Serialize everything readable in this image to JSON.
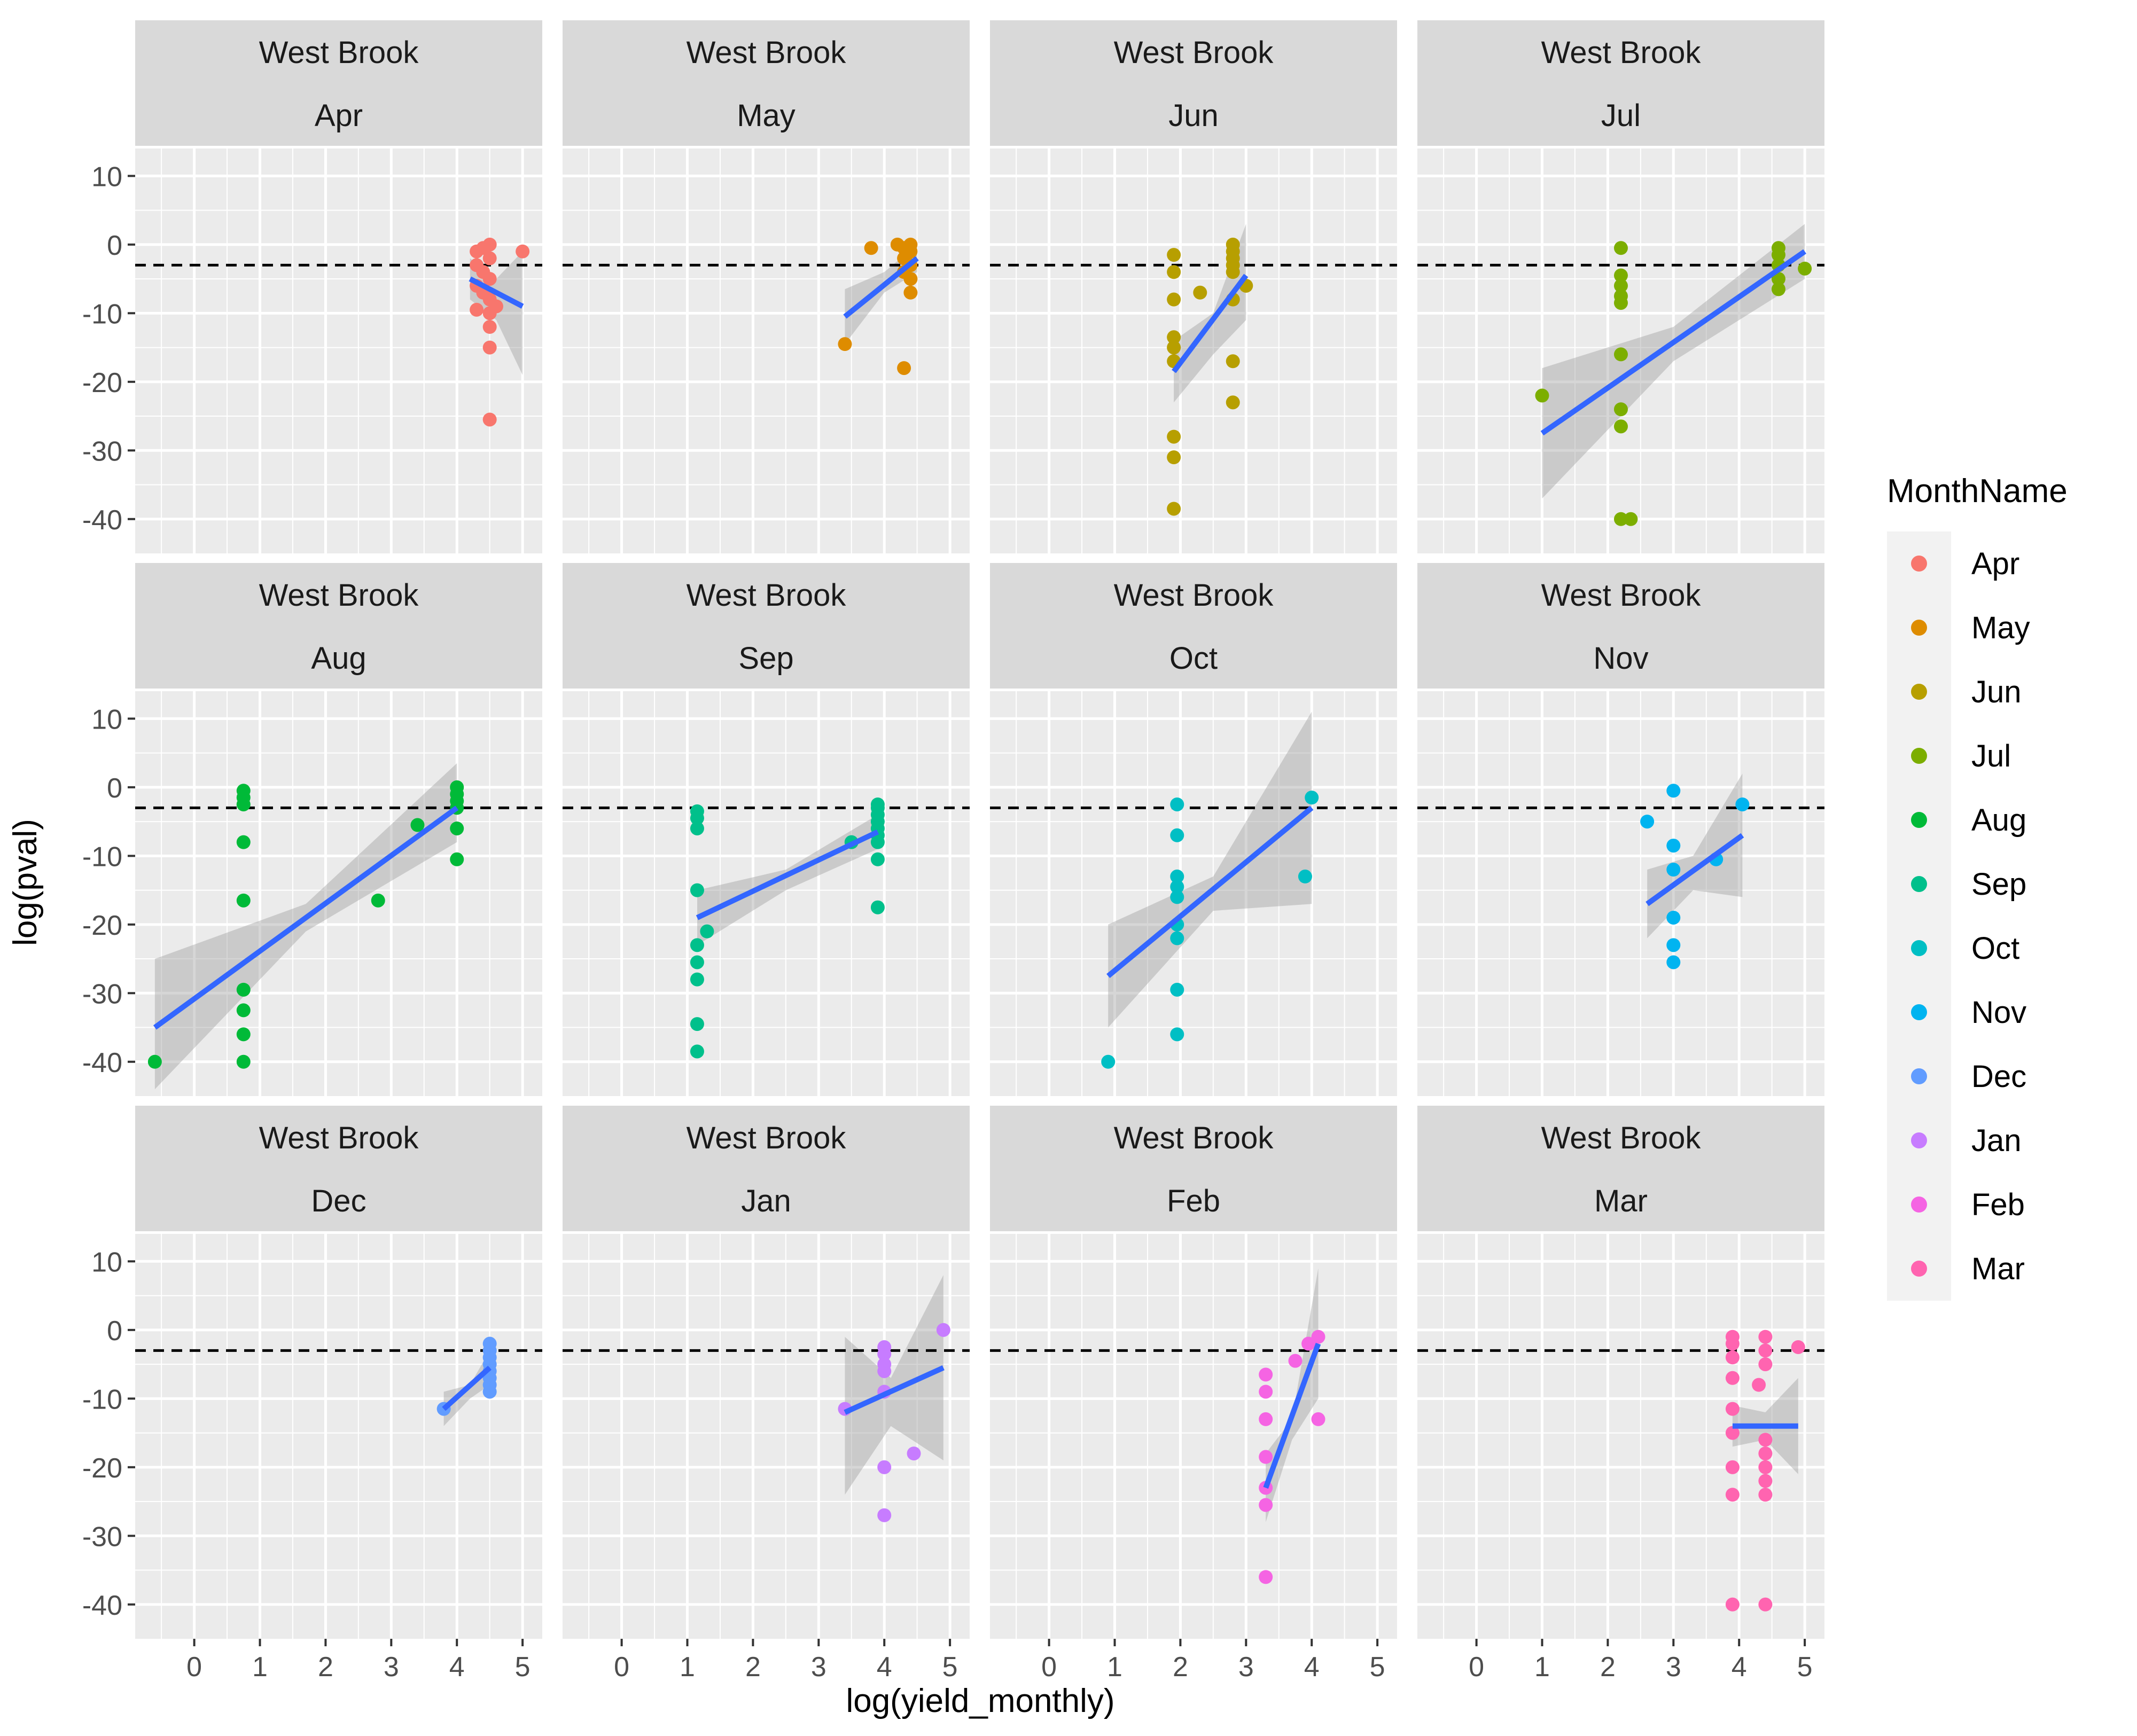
{
  "chart_data": {
    "type": "scatter",
    "facet_row_label": "West Brook",
    "xlabel": "log(yield_monthly)",
    "ylabel": "log(pval)",
    "xlim": [
      -0.9,
      5.3
    ],
    "ylim": [
      -45,
      14
    ],
    "x_ticks": [
      0,
      1,
      2,
      3,
      4,
      5
    ],
    "y_ticks": [
      10,
      0,
      -10,
      -20,
      -30,
      -40
    ],
    "hline": -3,
    "legend": {
      "title": "MonthName",
      "position": "right",
      "entries": [
        "Apr",
        "May",
        "Jun",
        "Jul",
        "Aug",
        "Sep",
        "Oct",
        "Nov",
        "Dec",
        "Jan",
        "Feb",
        "Mar"
      ]
    },
    "colors": {
      "Apr": "#F8766D",
      "May": "#DE8C00",
      "Jun": "#B79F00",
      "Jul": "#7CAE00",
      "Aug": "#00BA38",
      "Sep": "#00C08B",
      "Oct": "#00BFC4",
      "Nov": "#00B4F0",
      "Dec": "#619CFF",
      "Jan": "#C77CFF",
      "Feb": "#F564E3",
      "Mar": "#FF64B0",
      "fit": "#3366FF",
      "band": "#999999",
      "panel_bg": "#EBEBEB",
      "strip_bg": "#D9D9D9"
    },
    "panels": [
      {
        "month": "Apr",
        "points": [
          [
            4.3,
            -1
          ],
          [
            4.4,
            -0.5
          ],
          [
            4.5,
            0
          ],
          [
            4.5,
            -2
          ],
          [
            4.3,
            -3
          ],
          [
            4.4,
            -4
          ],
          [
            4.5,
            -5
          ],
          [
            4.3,
            -6
          ],
          [
            4.4,
            -7
          ],
          [
            4.5,
            -8
          ],
          [
            4.6,
            -9
          ],
          [
            4.3,
            -9.5
          ],
          [
            4.5,
            -10
          ],
          [
            4.5,
            -12
          ],
          [
            4.5,
            -15
          ],
          [
            4.5,
            -25.5
          ],
          [
            5.0,
            -1
          ]
        ],
        "fit": [
          [
            4.2,
            -5
          ],
          [
            5.0,
            -9
          ]
        ],
        "band": {
          "upper": [
            [
              4.2,
              -2
            ],
            [
              4.6,
              -5
            ],
            [
              5.0,
              -1
            ]
          ],
          "lower": [
            [
              4.2,
              -8
            ],
            [
              4.6,
              -11
            ],
            [
              5.0,
              -19
            ]
          ]
        }
      },
      {
        "month": "May",
        "points": [
          [
            3.8,
            -0.5
          ],
          [
            4.2,
            0
          ],
          [
            4.3,
            -0.5
          ],
          [
            4.4,
            0
          ],
          [
            4.4,
            -1
          ],
          [
            4.3,
            -2
          ],
          [
            4.4,
            -3
          ],
          [
            4.3,
            -4
          ],
          [
            4.4,
            -5
          ],
          [
            4.4,
            -7
          ],
          [
            3.4,
            -14.5
          ],
          [
            4.3,
            -18
          ]
        ],
        "fit": [
          [
            3.4,
            -10.5
          ],
          [
            4.5,
            -2
          ]
        ],
        "band": {
          "upper": [
            [
              3.4,
              -6.5
            ],
            [
              4.0,
              -4
            ],
            [
              4.5,
              0
            ]
          ],
          "lower": [
            [
              3.4,
              -14.5
            ],
            [
              4.0,
              -7
            ],
            [
              4.5,
              -4
            ]
          ]
        }
      },
      {
        "month": "Jun",
        "points": [
          [
            1.9,
            -1.5
          ],
          [
            1.9,
            -4
          ],
          [
            1.9,
            -8
          ],
          [
            1.9,
            -13.5
          ],
          [
            1.9,
            -15
          ],
          [
            1.9,
            -17
          ],
          [
            1.9,
            -28
          ],
          [
            1.9,
            -31
          ],
          [
            1.9,
            -38.5
          ],
          [
            2.3,
            -7
          ],
          [
            2.8,
            0
          ],
          [
            2.8,
            -1
          ],
          [
            2.8,
            -2
          ],
          [
            2.8,
            -3
          ],
          [
            2.8,
            -4
          ],
          [
            2.8,
            -8
          ],
          [
            2.8,
            -17
          ],
          [
            2.8,
            -23
          ],
          [
            3.0,
            -6
          ]
        ],
        "fit": [
          [
            1.9,
            -18.5
          ],
          [
            3.0,
            -4.5
          ]
        ],
        "band": {
          "upper": [
            [
              1.9,
              -14
            ],
            [
              2.5,
              -10
            ],
            [
              3.0,
              3
            ]
          ],
          "lower": [
            [
              1.9,
              -23
            ],
            [
              2.5,
              -16
            ],
            [
              3.0,
              -11
            ]
          ]
        }
      },
      {
        "month": "Jul",
        "points": [
          [
            1.0,
            -22
          ],
          [
            2.2,
            -0.5
          ],
          [
            2.2,
            -4.5
          ],
          [
            2.2,
            -6
          ],
          [
            2.2,
            -7.5
          ],
          [
            2.2,
            -8.5
          ],
          [
            2.2,
            -16
          ],
          [
            2.2,
            -24
          ],
          [
            2.2,
            -26.5
          ],
          [
            2.2,
            -40
          ],
          [
            2.35,
            -40
          ],
          [
            4.6,
            -0.5
          ],
          [
            4.6,
            -1.5
          ],
          [
            4.6,
            -3
          ],
          [
            4.6,
            -5
          ],
          [
            4.6,
            -6.5
          ],
          [
            5.0,
            -3.5
          ]
        ],
        "fit": [
          [
            1.0,
            -27.5
          ],
          [
            5.0,
            -1
          ]
        ],
        "band": {
          "upper": [
            [
              1.0,
              -18
            ],
            [
              3.0,
              -12
            ],
            [
              5.0,
              3
            ]
          ],
          "lower": [
            [
              1.0,
              -37
            ],
            [
              3.0,
              -17
            ],
            [
              5.0,
              -5
            ]
          ]
        }
      },
      {
        "month": "Aug",
        "points": [
          [
            -0.6,
            -40
          ],
          [
            0.75,
            -0.5
          ],
          [
            0.75,
            -1.5
          ],
          [
            0.75,
            -2.5
          ],
          [
            0.75,
            -8
          ],
          [
            0.75,
            -16.5
          ],
          [
            0.75,
            -29.5
          ],
          [
            0.75,
            -32.5
          ],
          [
            0.75,
            -36
          ],
          [
            0.75,
            -40
          ],
          [
            2.8,
            -16.5
          ],
          [
            3.4,
            -5.5
          ],
          [
            4.0,
            0
          ],
          [
            4.0,
            -1
          ],
          [
            4.0,
            -2
          ],
          [
            4.0,
            -3
          ],
          [
            4.0,
            -6
          ],
          [
            4.0,
            -10.5
          ]
        ],
        "fit": [
          [
            -0.6,
            -35
          ],
          [
            4.0,
            -3
          ]
        ],
        "band": {
          "upper": [
            [
              -0.6,
              -25
            ],
            [
              1.7,
              -17
            ],
            [
              4.0,
              3.5
            ]
          ],
          "lower": [
            [
              -0.6,
              -44
            ],
            [
              1.7,
              -21
            ],
            [
              4.0,
              -8
            ]
          ]
        }
      },
      {
        "month": "Sep",
        "points": [
          [
            1.15,
            -3.5
          ],
          [
            1.15,
            -4.5
          ],
          [
            1.15,
            -6
          ],
          [
            1.15,
            -15
          ],
          [
            1.15,
            -23
          ],
          [
            1.15,
            -25.5
          ],
          [
            1.15,
            -28
          ],
          [
            1.15,
            -34.5
          ],
          [
            1.15,
            -38.5
          ],
          [
            1.3,
            -21
          ],
          [
            3.5,
            -8
          ],
          [
            3.9,
            -2.5
          ],
          [
            3.9,
            -3
          ],
          [
            3.9,
            -4
          ],
          [
            3.9,
            -5
          ],
          [
            3.9,
            -6
          ],
          [
            3.9,
            -7
          ],
          [
            3.9,
            -8
          ],
          [
            3.9,
            -10.5
          ],
          [
            3.9,
            -17.5
          ]
        ],
        "fit": [
          [
            1.15,
            -19
          ],
          [
            3.9,
            -6.5
          ]
        ],
        "band": {
          "upper": [
            [
              1.15,
              -15
            ],
            [
              2.5,
              -12
            ],
            [
              3.9,
              -4
            ]
          ],
          "lower": [
            [
              1.15,
              -23
            ],
            [
              2.5,
              -15
            ],
            [
              3.9,
              -9
            ]
          ]
        }
      },
      {
        "month": "Oct",
        "points": [
          [
            0.9,
            -40
          ],
          [
            1.95,
            -2.5
          ],
          [
            1.95,
            -7
          ],
          [
            1.95,
            -13
          ],
          [
            1.95,
            -14.5
          ],
          [
            1.95,
            -16
          ],
          [
            1.95,
            -20
          ],
          [
            1.95,
            -22
          ],
          [
            1.95,
            -29.5
          ],
          [
            1.95,
            -36
          ],
          [
            3.9,
            -13
          ],
          [
            4.0,
            -1.5
          ]
        ],
        "fit": [
          [
            0.9,
            -27.5
          ],
          [
            4.0,
            -3
          ]
        ],
        "band": {
          "upper": [
            [
              0.9,
              -20
            ],
            [
              2.5,
              -13
            ],
            [
              4.0,
              11
            ]
          ],
          "lower": [
            [
              0.9,
              -35
            ],
            [
              2.5,
              -18
            ],
            [
              4.0,
              -17
            ]
          ]
        }
      },
      {
        "month": "Nov",
        "points": [
          [
            2.6,
            -5
          ],
          [
            3.0,
            -0.5
          ],
          [
            3.0,
            -8.5
          ],
          [
            3.0,
            -12
          ],
          [
            3.0,
            -19
          ],
          [
            3.0,
            -23
          ],
          [
            3.0,
            -25.5
          ],
          [
            3.65,
            -10.5
          ],
          [
            4.05,
            -2.5
          ]
        ],
        "fit": [
          [
            2.6,
            -17
          ],
          [
            4.05,
            -7
          ]
        ],
        "band": {
          "upper": [
            [
              2.6,
              -12
            ],
            [
              3.3,
              -10
            ],
            [
              4.05,
              2
            ]
          ],
          "lower": [
            [
              2.6,
              -22
            ],
            [
              3.3,
              -15
            ],
            [
              4.05,
              -16
            ]
          ]
        }
      },
      {
        "month": "Dec",
        "points": [
          [
            3.8,
            -11.5
          ],
          [
            4.5,
            -2
          ],
          [
            4.5,
            -3
          ],
          [
            4.5,
            -4
          ],
          [
            4.5,
            -5
          ],
          [
            4.5,
            -6
          ],
          [
            4.5,
            -7
          ],
          [
            4.5,
            -8
          ],
          [
            4.5,
            -9
          ]
        ],
        "fit": [
          [
            3.8,
            -11.5
          ],
          [
            4.5,
            -5.5
          ]
        ],
        "band": {
          "upper": [
            [
              3.8,
              -9
            ],
            [
              4.2,
              -8
            ],
            [
              4.5,
              -3
            ]
          ],
          "lower": [
            [
              3.8,
              -14
            ],
            [
              4.2,
              -10
            ],
            [
              4.5,
              -8
            ]
          ]
        }
      },
      {
        "month": "Jan",
        "points": [
          [
            3.4,
            -11.5
          ],
          [
            4.0,
            -2.5
          ],
          [
            4.0,
            -3.5
          ],
          [
            4.0,
            -5
          ],
          [
            4.0,
            -6
          ],
          [
            4.0,
            -9
          ],
          [
            4.0,
            -20
          ],
          [
            4.0,
            -27
          ],
          [
            4.45,
            -18
          ],
          [
            4.9,
            0
          ]
        ],
        "fit": [
          [
            3.4,
            -12
          ],
          [
            4.9,
            -5.5
          ]
        ],
        "band": {
          "upper": [
            [
              3.4,
              -1
            ],
            [
              4.1,
              -7
            ],
            [
              4.9,
              8
            ]
          ],
          "lower": [
            [
              3.4,
              -24
            ],
            [
              4.1,
              -14
            ],
            [
              4.9,
              -19
            ]
          ]
        }
      },
      {
        "month": "Feb",
        "points": [
          [
            3.3,
            -6.5
          ],
          [
            3.3,
            -9
          ],
          [
            3.3,
            -13
          ],
          [
            3.3,
            -18.5
          ],
          [
            3.3,
            -23
          ],
          [
            3.3,
            -25.5
          ],
          [
            3.3,
            -36
          ],
          [
            3.75,
            -4.5
          ],
          [
            3.95,
            -2
          ],
          [
            4.1,
            -1
          ],
          [
            4.1,
            -13
          ]
        ],
        "fit": [
          [
            3.3,
            -23
          ],
          [
            4.1,
            -2
          ]
        ],
        "band": {
          "upper": [
            [
              3.3,
              -18
            ],
            [
              3.7,
              -13
            ],
            [
              4.1,
              9
            ]
          ],
          "lower": [
            [
              3.3,
              -28
            ],
            [
              3.7,
              -16
            ],
            [
              4.1,
              -10
            ]
          ]
        }
      },
      {
        "month": "Mar",
        "points": [
          [
            3.9,
            -1
          ],
          [
            3.9,
            -2
          ],
          [
            3.9,
            -4
          ],
          [
            3.9,
            -7
          ],
          [
            3.9,
            -11.5
          ],
          [
            3.9,
            -15
          ],
          [
            3.9,
            -20
          ],
          [
            3.9,
            -24
          ],
          [
            3.9,
            -40
          ],
          [
            4.3,
            -8
          ],
          [
            4.4,
            -1
          ],
          [
            4.4,
            -3
          ],
          [
            4.4,
            -5
          ],
          [
            4.4,
            -16
          ],
          [
            4.4,
            -18
          ],
          [
            4.4,
            -20
          ],
          [
            4.4,
            -22
          ],
          [
            4.4,
            -24
          ],
          [
            4.4,
            -40
          ],
          [
            4.9,
            -2.5
          ]
        ],
        "fit": [
          [
            3.9,
            -14
          ],
          [
            4.9,
            -14
          ]
        ],
        "band": {
          "upper": [
            [
              3.9,
              -11
            ],
            [
              4.4,
              -12
            ],
            [
              4.9,
              -7
            ]
          ],
          "lower": [
            [
              3.9,
              -17
            ],
            [
              4.4,
              -16
            ],
            [
              4.9,
              -21
            ]
          ]
        }
      }
    ]
  }
}
